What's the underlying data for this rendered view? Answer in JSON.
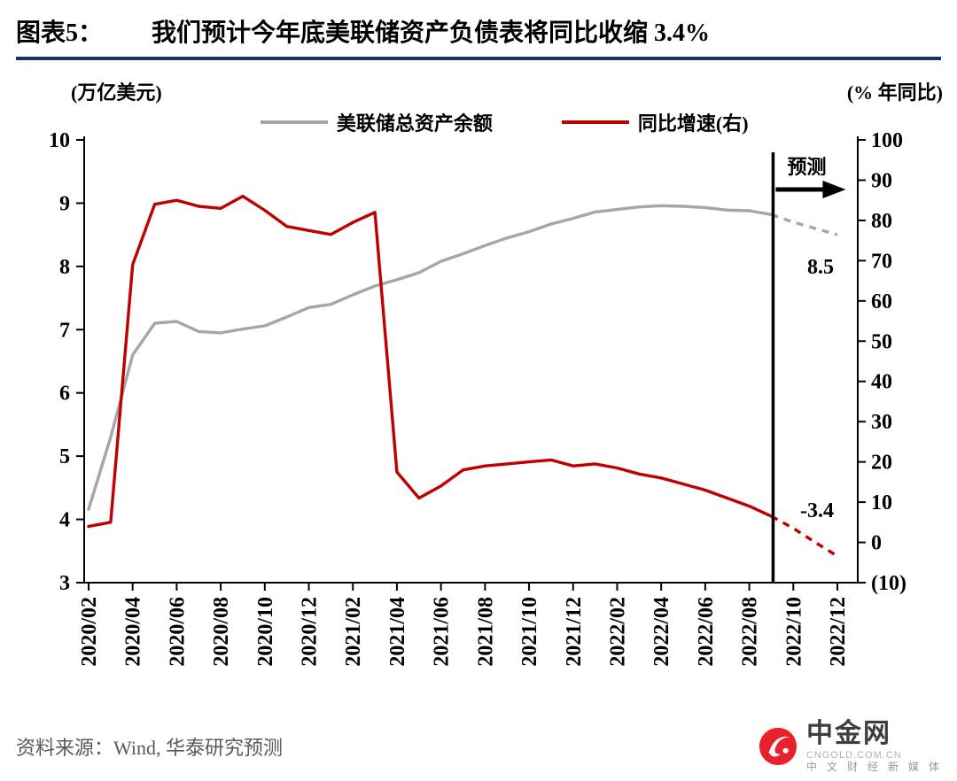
{
  "header": {
    "label": "图表5：",
    "title": "我们预计今年底美联储资产负债表将同比收缩 3.4%"
  },
  "chart_data": {
    "type": "line",
    "title": "我们预计今年底美联储资产负债表将同比收缩 3.4%",
    "grid": false,
    "legend_position": "top-center",
    "left_axis": {
      "label": "(万亿美元)",
      "min": 3,
      "max": 10,
      "ticks": [
        3,
        4,
        5,
        6,
        7,
        8,
        9,
        10
      ]
    },
    "right_axis": {
      "label": "(% 年同比)",
      "min": -10,
      "max": 100,
      "ticks": [
        -10,
        0,
        10,
        20,
        30,
        40,
        50,
        60,
        70,
        80,
        90,
        100
      ]
    },
    "x": [
      "2020/02",
      "2020/03",
      "2020/04",
      "2020/05",
      "2020/06",
      "2020/07",
      "2020/08",
      "2020/09",
      "2020/10",
      "2020/11",
      "2020/12",
      "2021/01",
      "2021/02",
      "2021/03",
      "2021/04",
      "2021/05",
      "2021/06",
      "2021/07",
      "2021/08",
      "2021/09",
      "2021/10",
      "2021/11",
      "2021/12",
      "2022/01",
      "2022/02",
      "2022/03",
      "2022/04",
      "2022/05",
      "2022/06",
      "2022/07",
      "2022/08",
      "2022/09",
      "2022/10",
      "2022/11",
      "2022/12"
    ],
    "x_tick_labels": [
      "2020/02",
      "2020/04",
      "2020/06",
      "2020/08",
      "2020/10",
      "2020/12",
      "2021/02",
      "2021/04",
      "2021/06",
      "2021/08",
      "2021/10",
      "2021/12",
      "2022/02",
      "2022/04",
      "2022/06",
      "2022/08",
      "2022/10",
      "2022/12"
    ],
    "series": [
      {
        "name": "美联储总资产余额",
        "axis": "left",
        "color": "#a6a6a6",
        "forecast_from_index": 31,
        "values": [
          4.16,
          5.3,
          6.6,
          7.1,
          7.13,
          6.97,
          6.95,
          7.01,
          7.06,
          7.2,
          7.35,
          7.4,
          7.55,
          7.69,
          7.79,
          7.9,
          8.08,
          8.2,
          8.33,
          8.45,
          8.55,
          8.67,
          8.76,
          8.86,
          8.9,
          8.94,
          8.96,
          8.95,
          8.93,
          8.89,
          8.88,
          8.82,
          8.7,
          8.6,
          8.5
        ]
      },
      {
        "name": "同比增速(右)",
        "axis": "right",
        "color": "#c00000",
        "forecast_from_index": 31,
        "values": [
          4,
          5,
          69,
          84,
          85,
          83.5,
          83,
          86,
          82.5,
          78.5,
          77.5,
          76.5,
          79.5,
          82,
          17.5,
          11,
          14,
          18,
          19,
          19.5,
          20,
          20.5,
          19,
          19.5,
          18.5,
          17,
          16,
          14.5,
          13,
          11,
          9,
          6.5,
          3.5,
          0,
          -3.4
        ]
      }
    ],
    "forecast": {
      "label": "预测",
      "boundary_index": 31
    },
    "annotations": [
      {
        "series": 0,
        "text": "8.5",
        "color": "#000000",
        "placement": "below-end"
      },
      {
        "series": 1,
        "text": "-3.4",
        "color": "#c00000",
        "placement": "above-end"
      }
    ]
  },
  "footer": {
    "source": "资料来源：Wind, 华泰研究预测"
  },
  "watermark": {
    "brand": "中金网",
    "domain": "CNGOLD.COM.CN",
    "tagline": "中 文 财 经 新 媒 体",
    "logo_color": "#e8222d"
  }
}
